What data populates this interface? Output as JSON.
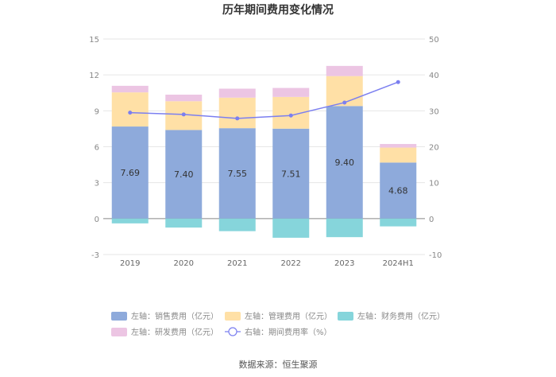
{
  "chart_data": {
    "type": "bar",
    "title": "历年期间费用变化情况",
    "categories": [
      "2019",
      "2020",
      "2021",
      "2022",
      "2023",
      "2024H1"
    ],
    "left_axis": {
      "ylim": [
        -3,
        15
      ],
      "ticks": [
        "-3",
        "0",
        "3",
        "6",
        "9",
        "12",
        "15"
      ]
    },
    "right_axis": {
      "ylim": [
        -10,
        50
      ],
      "ticks": [
        "-10",
        "0",
        "10",
        "20",
        "30",
        "40",
        "50"
      ]
    },
    "series": [
      {
        "name": "左轴：销售费用（亿元）",
        "axis": "left",
        "color": "#8eaadb",
        "values": [
          7.69,
          7.4,
          7.55,
          7.51,
          9.4,
          4.68
        ],
        "labels": [
          "7.69",
          "7.40",
          "7.55",
          "7.51",
          "9.40",
          "4.68"
        ]
      },
      {
        "name": "左轴：管理费用（亿元）",
        "axis": "left",
        "color": "#ffe0a6",
        "values": [
          2.85,
          2.4,
          2.55,
          2.65,
          2.5,
          1.25
        ]
      },
      {
        "name": "左轴：财务费用（亿元）",
        "axis": "left",
        "color": "#86d5db",
        "values": [
          -0.4,
          -0.75,
          -1.05,
          -1.6,
          -1.55,
          -0.65
        ]
      },
      {
        "name": "左轴：研发费用（亿元）",
        "axis": "left",
        "color": "#ecc5e3",
        "values": [
          0.55,
          0.55,
          0.75,
          0.75,
          0.85,
          0.3
        ]
      },
      {
        "name": "右轴：期间费用率（%）",
        "axis": "right",
        "type": "line",
        "color": "#7b7ff0",
        "values": [
          29.5,
          29.0,
          27.9,
          28.7,
          32.3,
          38.0
        ]
      }
    ],
    "grid": true,
    "legend": "bottom"
  },
  "source": "数据来源：恒生聚源"
}
